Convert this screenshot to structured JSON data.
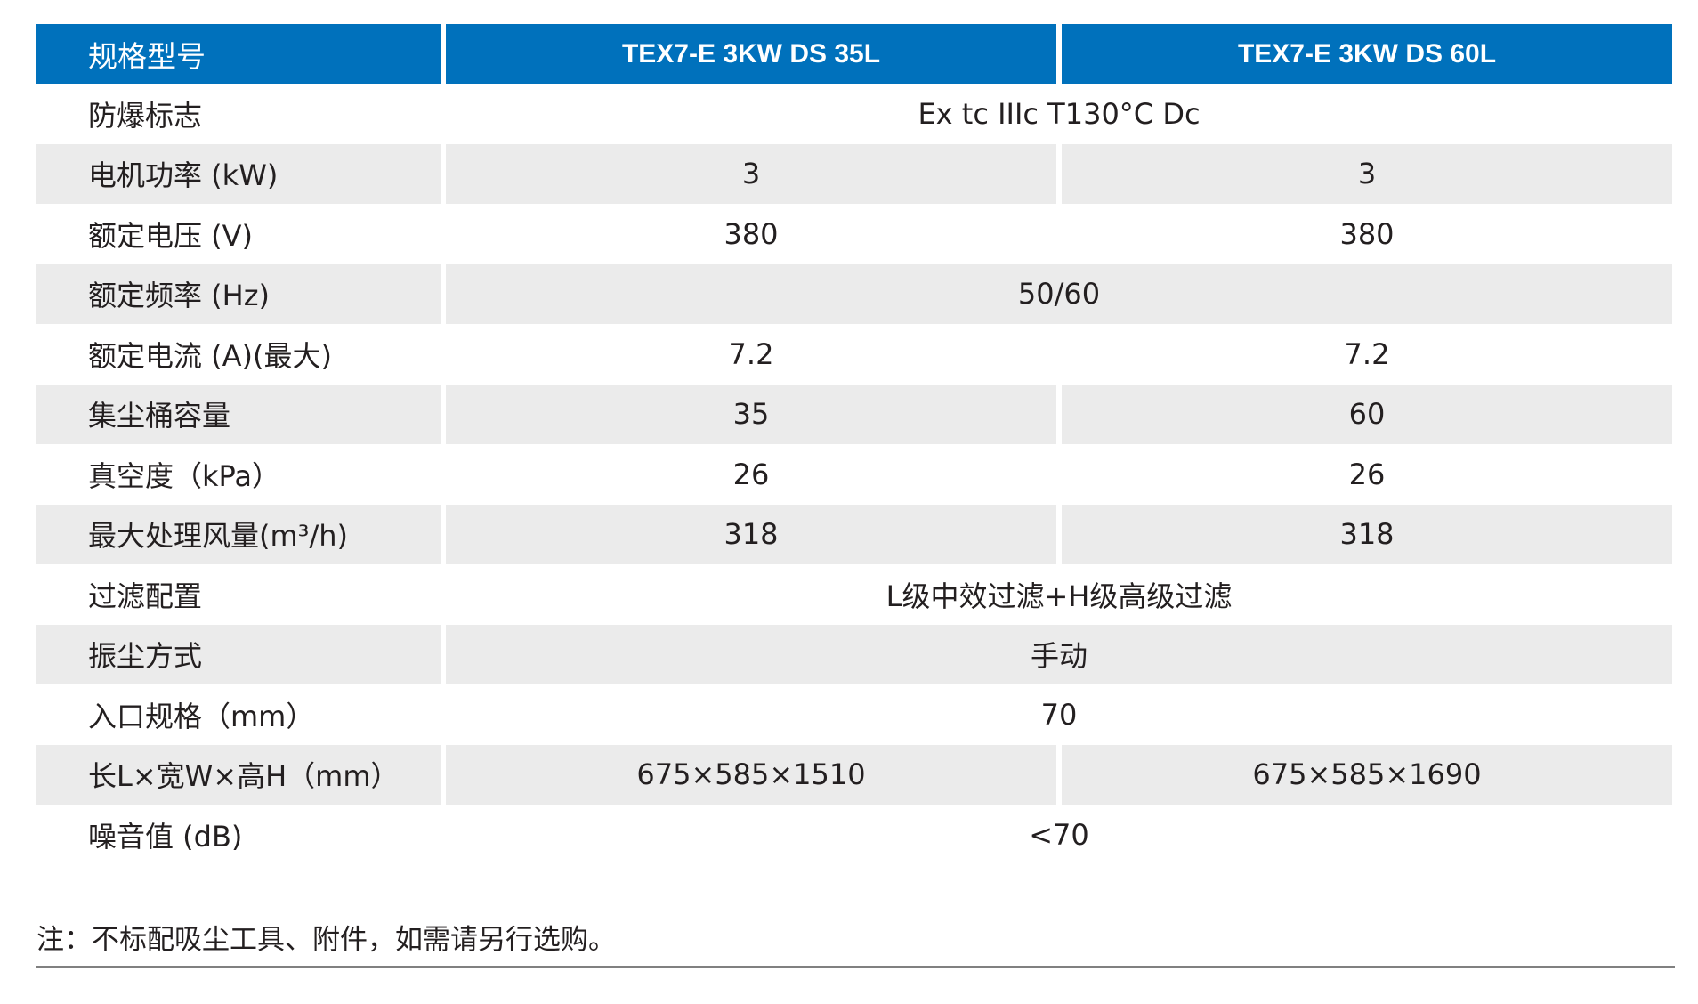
{
  "header": {
    "label": "规格型号",
    "model_a": "TEX7-E 3KW DS 35L",
    "model_b": "TEX7-E 3KW DS 60L"
  },
  "rows": [
    {
      "label": "防爆标志",
      "value": "Ex tc IIIc T130°C Dc"
    },
    {
      "label": "电机功率 (kW)",
      "a": "3",
      "b": "3"
    },
    {
      "label": "额定电压 (V)",
      "a": "380",
      "b": "380"
    },
    {
      "label": "额定频率 (Hz)",
      "value": "50/60"
    },
    {
      "label": "额定电流 (A)(最大)",
      "a": "7.2",
      "b": "7.2"
    },
    {
      "label": "集尘桶容量",
      "a": "35",
      "b": "60"
    },
    {
      "label": "真空度（kPa）",
      "a": "26",
      "b": "26"
    },
    {
      "label": "最大处理风量(m³/h)",
      "a": "318",
      "b": "318"
    },
    {
      "label": "过滤配置",
      "value": "L级中效过滤+H级高级过滤"
    },
    {
      "label": "振尘方式",
      "value": "手动"
    },
    {
      "label": "入口规格（mm）",
      "value": "70"
    },
    {
      "label": "长L×宽W×高H（mm）",
      "a": "675×585×1510",
      "b": "675×585×1690"
    },
    {
      "label": "噪音值 (dB)",
      "value": "<70"
    }
  ],
  "note": "注：不标配吸尘工具、附件，如需请另行选购。",
  "colors": {
    "header_bg": "#0071bc",
    "header_text": "#ffffff",
    "shaded_row": "#ebebeb",
    "text": "#231f20",
    "rule": "#808080"
  }
}
